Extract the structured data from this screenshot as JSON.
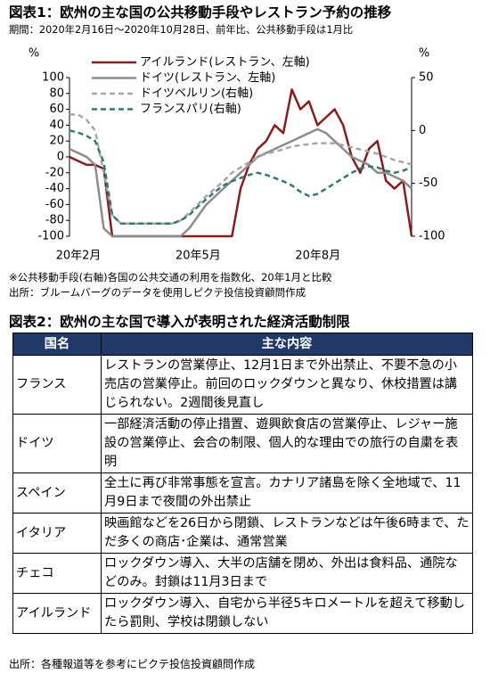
{
  "chart_data": {
    "type": "line",
    "title": "図表1：欧州の主な国の公共移動手段やレストラン予約の推移",
    "subtitle": "期間：2020年2月16日～2020年10月28日、前年比、公共移動手段は1月比",
    "y_unit": "%",
    "y2_unit": "%",
    "categories": [
      "20年2月",
      null,
      null,
      null,
      null,
      null,
      null,
      null,
      null,
      null,
      null,
      null,
      null,
      null,
      "20年5月",
      null,
      null,
      null,
      null,
      null,
      null,
      null,
      null,
      null,
      null,
      null,
      null,
      null,
      "20年8月",
      null,
      null,
      null,
      null,
      null,
      null,
      null,
      null,
      null,
      null,
      null,
      null
    ],
    "ylim": [
      -100,
      100
    ],
    "yticks": [
      -100,
      -80,
      -60,
      -40,
      -20,
      0,
      20,
      40,
      60,
      80,
      100
    ],
    "y2lim": [
      -100,
      50
    ],
    "y2ticks": [
      -100,
      -50,
      0,
      50
    ],
    "grid": false,
    "legend": "top-left",
    "series": [
      {
        "name": "アイルランド(レストラン、左軸)",
        "color": "#8b1c1c",
        "dash": false,
        "values": [
          0,
          -5,
          -10,
          -10,
          -15,
          -100,
          -100,
          -100,
          -100,
          -100,
          -100,
          -100,
          -100,
          -100,
          -100,
          -100,
          -100,
          -100,
          -100,
          -100,
          -40,
          -10,
          10,
          20,
          40,
          30,
          85,
          60,
          70,
          40,
          50,
          60,
          40,
          0,
          -20,
          10,
          20,
          -30,
          -40,
          -30,
          -100
        ]
      },
      {
        "name": "ドイツ(レストラン、左軸)",
        "color": "#8c8c8c",
        "dash": false,
        "values": [
          10,
          5,
          0,
          -10,
          -90,
          -100,
          -100,
          -100,
          -100,
          -100,
          -100,
          -100,
          -100,
          -100,
          -90,
          -75,
          -60,
          -50,
          -40,
          -30,
          -20,
          -10,
          0,
          5,
          10,
          15,
          20,
          25,
          30,
          35,
          30,
          20,
          10,
          0,
          -5,
          -10,
          -20,
          -20,
          -25,
          -30,
          -40
        ]
      },
      {
        "name": "ドイツベルリン(右軸)",
        "color": "#a6a6a6",
        "dash": true,
        "axis": "y2",
        "values": [
          15,
          15,
          10,
          0,
          -40,
          -80,
          -88,
          -88,
          -88,
          -88,
          -88,
          -88,
          -88,
          -85,
          -78,
          -70,
          -62,
          -55,
          -48,
          -40,
          -35,
          -30,
          -25,
          -22,
          -20,
          -18,
          -15,
          -14,
          -13,
          -12,
          -12,
          -12,
          -14,
          -16,
          -18,
          -20,
          -22,
          -25,
          -28,
          -30,
          -32
        ]
      },
      {
        "name": "フランスパリ(右軸)",
        "color": "#2b7a78",
        "dash": true,
        "axis": "y2",
        "values": [
          0,
          -2,
          -5,
          -10,
          -30,
          -80,
          -88,
          -88,
          -88,
          -88,
          -88,
          -88,
          -88,
          -85,
          -80,
          -72,
          -65,
          -58,
          -52,
          -48,
          -45,
          -42,
          -40,
          -42,
          -45,
          -48,
          -52,
          -58,
          -62,
          -60,
          -55,
          -50,
          -45,
          -40,
          -36,
          -34,
          -35,
          -38,
          -40,
          -38,
          -35
        ]
      }
    ],
    "notes": [
      "※公共移動手段(右軸)各国の公共交通の利用を指数化、20年1月と比較",
      "出所：ブルームバーグのデータを使用しピクテ投信投資顧問作成"
    ]
  },
  "table": {
    "title": "図表2：欧州の主な国で導入が表明された経済活動制限",
    "header": [
      "国名",
      "主な内容"
    ],
    "rows": [
      [
        "フランス",
        "レストランの営業停止、12月1日まで外出禁止、不要不急の小売店の営業停止。前回のロックダウンと異なり、休校措置は講じられない。2週間後見直し"
      ],
      [
        "ドイツ",
        "一部経済活動の停止措置、遊興飲食店の営業停止、レジャー施設の営業停止、会合の制限、個人的な理由での旅行の自粛を表明"
      ],
      [
        "スペイン",
        "全土に再び非常事態を宣言。カナリア諸島を除く全地域で、11月9日まで夜間の外出禁止"
      ],
      [
        "イタリア",
        "映画館などを26日から閉鎖、レストランなどは午後6時まで、ただ多くの商店･企業は、通常営業"
      ],
      [
        "チェコ",
        "ロックダウン導入、大半の店舗を閉め、外出は食料品、通院などのみ。封鎖は11月3日まで"
      ],
      [
        "アイルランド",
        "ロックダウン導入、自宅から半径5キロメートルを超えて移動したら罰則、学校は閉鎖しない"
      ]
    ],
    "source": "出所：各種報道等を参考にピクテ投信投資顧問作成"
  }
}
